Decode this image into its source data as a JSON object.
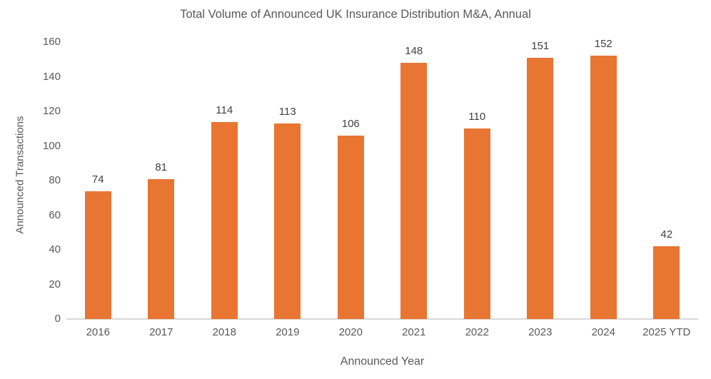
{
  "chart_data": {
    "type": "bar",
    "title": "Total Volume of Announced UK Insurance Distribution M&A, Annual",
    "xlabel": "Announced Year",
    "ylabel": "Announced Transactions",
    "categories": [
      "2016",
      "2017",
      "2018",
      "2019",
      "2020",
      "2021",
      "2022",
      "2023",
      "2024",
      "2025 YTD"
    ],
    "values": [
      74,
      81,
      114,
      113,
      106,
      148,
      110,
      151,
      152,
      42
    ],
    "ylim": [
      0,
      160
    ],
    "ytick_step": 20,
    "grid": false,
    "legend": false,
    "data_labels": true,
    "bar_color": "#E87532",
    "axis_line_color": "#D9D9D9",
    "text_color": "#595959",
    "data_label_color": "#404040"
  }
}
